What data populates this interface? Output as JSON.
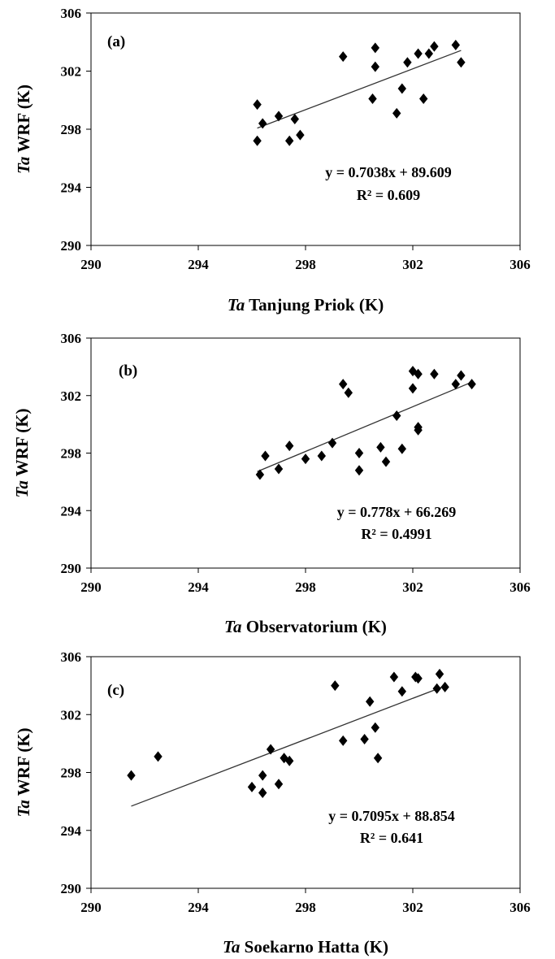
{
  "chart_data": [
    {
      "type": "scatter",
      "panel_label": "(a)",
      "xlabel_italic": "Ta",
      "xlabel_rest": "Tanjung Priok (K)",
      "ylabel_italic": "Ta",
      "ylabel_rest": "WRF (K)",
      "xlim": [
        290,
        306
      ],
      "ylim": [
        290,
        306
      ],
      "xticks": [
        "290",
        "294",
        "298",
        "302",
        "306"
      ],
      "yticks": [
        "290",
        "294",
        "298",
        "302",
        "306"
      ],
      "equation": "y = 0.7038x + 89.609",
      "r2": "R² = 0.609",
      "trendline": {
        "slope": 0.7038,
        "intercept": 89.609,
        "x_range": [
          296.2,
          303.8
        ]
      },
      "points": [
        [
          296.2,
          299.7
        ],
        [
          296.4,
          298.4
        ],
        [
          296.2,
          297.2
        ],
        [
          297.0,
          298.9
        ],
        [
          297.4,
          297.2
        ],
        [
          297.6,
          298.7
        ],
        [
          297.8,
          297.6
        ],
        [
          299.4,
          303.0
        ],
        [
          300.5,
          300.1
        ],
        [
          300.6,
          302.3
        ],
        [
          300.6,
          303.6
        ],
        [
          301.4,
          299.1
        ],
        [
          301.6,
          300.8
        ],
        [
          301.8,
          302.6
        ],
        [
          302.2,
          303.2
        ],
        [
          302.4,
          300.1
        ],
        [
          302.6,
          303.2
        ],
        [
          302.8,
          303.7
        ],
        [
          303.6,
          303.8
        ],
        [
          303.8,
          302.6
        ]
      ]
    },
    {
      "type": "scatter",
      "panel_label": "(b)",
      "xlabel_italic": "Ta",
      "xlabel_rest": "Observatorium (K)",
      "ylabel_italic": "Ta",
      "ylabel_rest": "WRF (K)",
      "xlim": [
        290,
        306
      ],
      "ylim": [
        290,
        306
      ],
      "xticks": [
        "290",
        "294",
        "298",
        "302",
        "306"
      ],
      "yticks": [
        "290",
        "294",
        "298",
        "302",
        "306"
      ],
      "equation": "y = 0.778x + 66.269",
      "r2": "R² = 0.4991",
      "trendline": {
        "slope": 0.778,
        "intercept": 66.269,
        "x_range": [
          296.2,
          304.2
        ]
      },
      "points": [
        [
          296.3,
          296.5
        ],
        [
          296.5,
          297.8
        ],
        [
          297.0,
          296.9
        ],
        [
          297.4,
          298.5
        ],
        [
          298.0,
          297.6
        ],
        [
          298.6,
          297.8
        ],
        [
          299.0,
          298.7
        ],
        [
          299.4,
          302.8
        ],
        [
          299.6,
          302.2
        ],
        [
          300.0,
          298.0
        ],
        [
          300.0,
          296.8
        ],
        [
          300.8,
          298.4
        ],
        [
          301.0,
          297.4
        ],
        [
          301.4,
          300.6
        ],
        [
          301.6,
          298.3
        ],
        [
          302.0,
          302.5
        ],
        [
          302.0,
          303.7
        ],
        [
          302.2,
          303.5
        ],
        [
          302.2,
          299.8
        ],
        [
          302.2,
          299.6
        ],
        [
          302.8,
          303.5
        ],
        [
          303.6,
          302.8
        ],
        [
          303.8,
          303.4
        ],
        [
          304.2,
          302.8
        ]
      ]
    },
    {
      "type": "scatter",
      "panel_label": "(c)",
      "xlabel_italic": "Ta",
      "xlabel_rest": "Soekarno Hatta (K)",
      "ylabel_italic": "Ta",
      "ylabel_rest": "WRF (K)",
      "xlim": [
        290,
        306
      ],
      "ylim": [
        290,
        306
      ],
      "xticks": [
        "290",
        "294",
        "298",
        "302",
        "306"
      ],
      "yticks": [
        "290",
        "294",
        "298",
        "302",
        "306"
      ],
      "equation": "y = 0.7095x + 88.854",
      "r2": "R² = 0.641",
      "trendline": {
        "slope": 0.7095,
        "intercept": 88.854,
        "x_range": [
          291.5,
          303.2
        ]
      },
      "points": [
        [
          291.5,
          297.8
        ],
        [
          292.5,
          299.1
        ],
        [
          296.0,
          297.0
        ],
        [
          296.4,
          297.8
        ],
        [
          296.4,
          296.6
        ],
        [
          296.7,
          299.6
        ],
        [
          297.0,
          297.2
        ],
        [
          297.2,
          299.0
        ],
        [
          297.4,
          298.8
        ],
        [
          299.1,
          304.0
        ],
        [
          299.4,
          300.2
        ],
        [
          300.2,
          300.3
        ],
        [
          300.4,
          302.9
        ],
        [
          300.6,
          301.1
        ],
        [
          300.7,
          299.0
        ],
        [
          301.3,
          304.6
        ],
        [
          301.6,
          303.6
        ],
        [
          302.1,
          304.6
        ],
        [
          302.2,
          304.5
        ],
        [
          302.9,
          303.8
        ],
        [
          303.0,
          304.8
        ],
        [
          303.2,
          303.9
        ]
      ]
    }
  ]
}
